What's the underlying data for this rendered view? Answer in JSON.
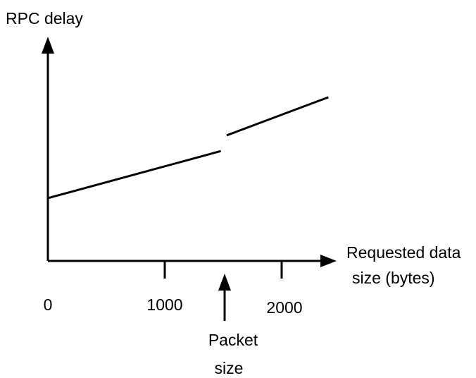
{
  "chart_data": {
    "type": "line",
    "ylabel": "RPC delay",
    "xlabel_lines": [
      "Requested data",
      "size (bytes)"
    ],
    "x_ticks": [
      0,
      1000,
      2000
    ],
    "annotation": {
      "x": 1500,
      "lines": [
        "Packet",
        "size"
      ]
    },
    "series": [
      {
        "segments": [
          {
            "x": [
              0,
              1480
            ],
            "y": [
              0.28,
              0.49
            ]
          },
          {
            "x": [
              1530,
              2400
            ],
            "y": [
              0.56,
              0.73
            ]
          }
        ]
      }
    ],
    "xlim": [
      0,
      2400
    ],
    "grid": false,
    "legend": "none"
  }
}
